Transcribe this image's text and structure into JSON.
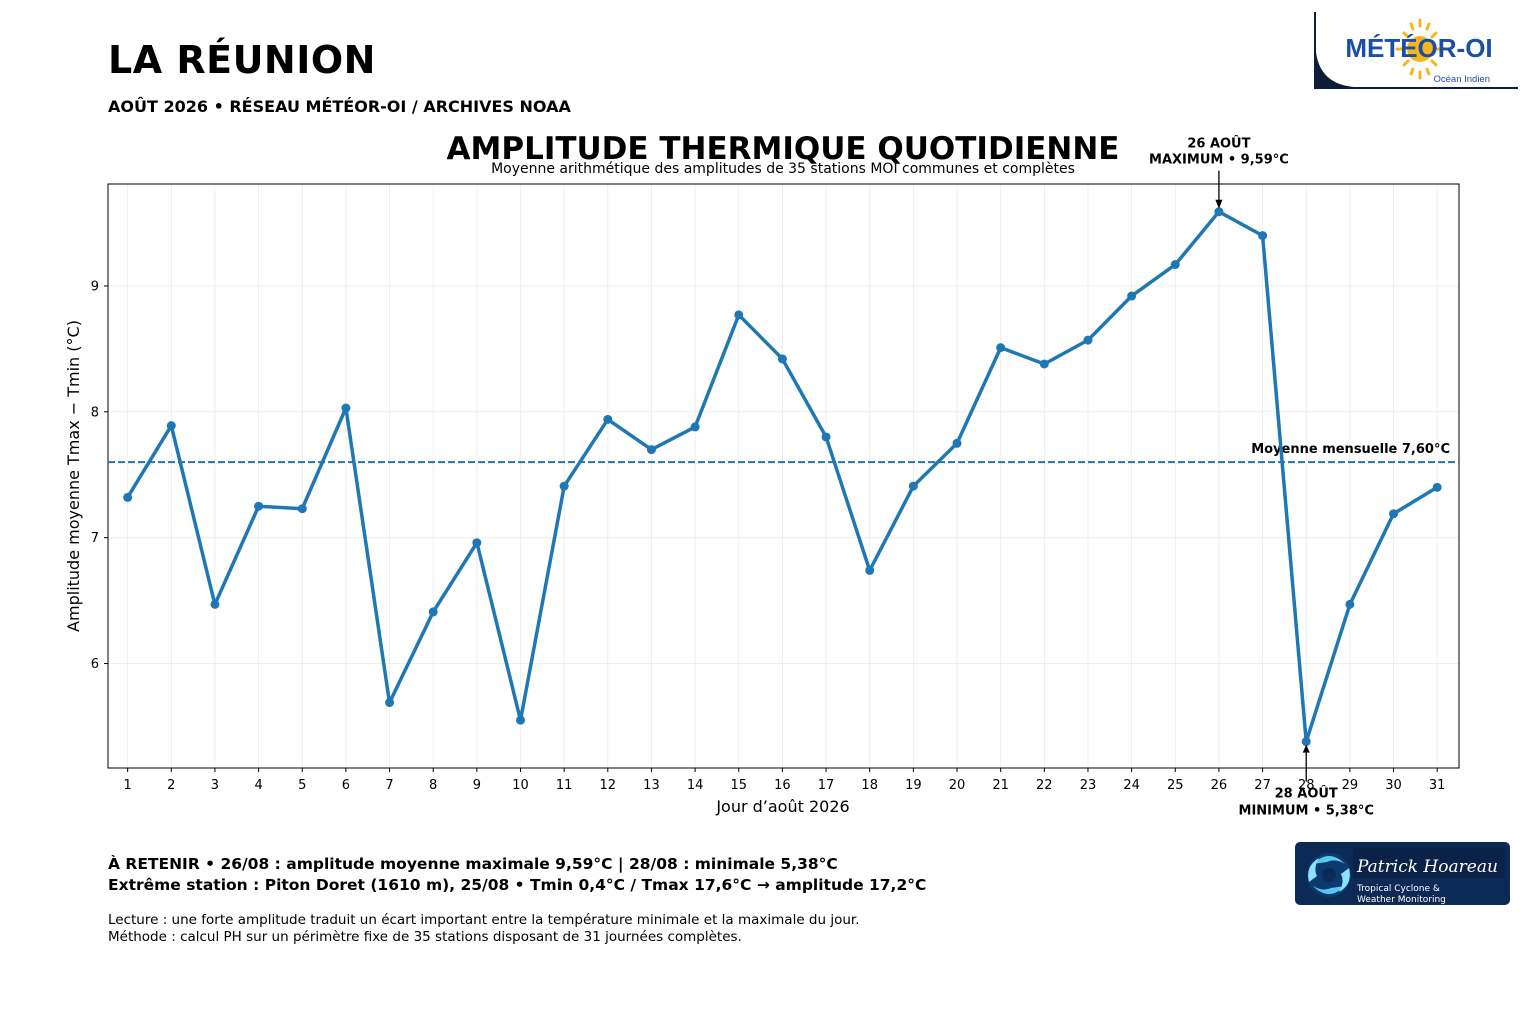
{
  "header": {
    "title": "LA RÉUNION",
    "subtitle": "AOÛT 2026 • RÉSEAU MÉTÉOR-OI / ARCHIVES NOAA"
  },
  "logo_meteor": {
    "brand": "MÉTÉOR-OI",
    "region": "Océan Indien",
    "icon": "sun-icon"
  },
  "logo_ph": {
    "name": "Patrick Hoareau",
    "line1": "Tropical Cyclone &",
    "line2": "Weather Monitoring",
    "icon": "cyclone-icon"
  },
  "chart_data": {
    "type": "line",
    "title": "AMPLITUDE THERMIQUE QUOTIDIENNE",
    "subtitle": "Moyenne arithmétique des amplitudes de 35 stations MOI communes et complètes",
    "xlabel": "Jour d’août 2026",
    "ylabel": "Amplitude moyenne Tmax − Tmin (°C)",
    "x": [
      1,
      2,
      3,
      4,
      5,
      6,
      7,
      8,
      9,
      10,
      11,
      12,
      13,
      14,
      15,
      16,
      17,
      18,
      19,
      20,
      21,
      22,
      23,
      24,
      25,
      26,
      27,
      28,
      29,
      30,
      31
    ],
    "y": [
      7.32,
      7.89,
      6.47,
      7.25,
      7.23,
      8.03,
      5.69,
      6.41,
      6.96,
      5.55,
      7.41,
      7.94,
      7.7,
      7.88,
      8.77,
      8.42,
      7.8,
      6.74,
      7.41,
      7.75,
      8.51,
      8.38,
      8.57,
      8.92,
      9.17,
      9.59,
      9.4,
      5.38,
      6.47,
      7.19,
      7.4
    ],
    "xlim": [
      0.55,
      31.5
    ],
    "ylim": [
      5.17,
      9.81
    ],
    "xticks": [
      1,
      2,
      3,
      4,
      5,
      6,
      7,
      8,
      9,
      10,
      11,
      12,
      13,
      14,
      15,
      16,
      17,
      18,
      19,
      20,
      21,
      22,
      23,
      24,
      25,
      26,
      27,
      28,
      29,
      30,
      31
    ],
    "yticks": [
      6,
      7,
      8,
      9
    ],
    "grid": true,
    "color": "#1f77b4",
    "mean": {
      "value": 7.6,
      "label": "Moyenne mensuelle  7,60°C"
    },
    "annotations": [
      {
        "x": 26,
        "y": 9.59,
        "line1": "26 AOÛT",
        "line2": "MAXIMUM • 9,59°C",
        "position": "above"
      },
      {
        "x": 28,
        "y": 5.38,
        "line1": "28 AOÛT",
        "line2": "MINIMUM • 5,38°C",
        "position": "below"
      }
    ]
  },
  "summary": {
    "line1": "À RETENIR  •  26/08 : amplitude moyenne maximale 9,59°C  |  28/08 : minimale 5,38°C",
    "line2": "Extrême station : Piton Doret (1610 m), 25/08 • Tmin 0,4°C / Tmax 17,6°C → amplitude 17,2°C"
  },
  "notes": {
    "line1": "Lecture : une forte amplitude traduit un écart important entre la température minimale et la maximale du jour.",
    "line2": "Méthode : calcul PH sur un périmètre fixe de 35 stations disposant de 31 journées complètes."
  }
}
